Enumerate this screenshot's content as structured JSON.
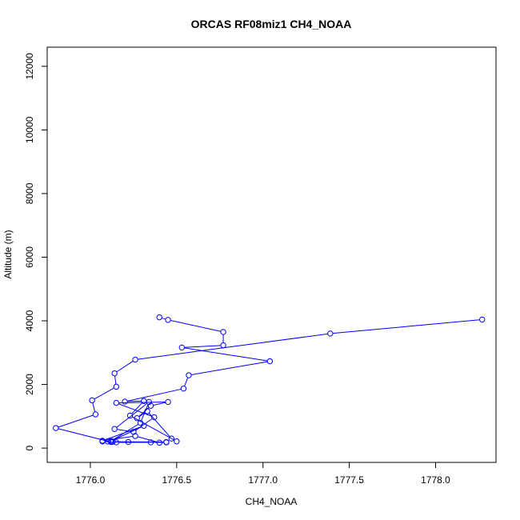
{
  "chart_data": {
    "type": "line",
    "title": "ORCAS RF08miz1 CH4_NOAA",
    "xlabel": "CH4_NOAA",
    "ylabel": "Altitude (m)",
    "xlim": [
      1775.75,
      1778.35
    ],
    "ylim": [
      -450,
      12600
    ],
    "xticks": [
      "1776.0",
      "1776.5",
      "1777.0",
      "1777.5",
      "1778.0"
    ],
    "yticks": [
      "0",
      "2000",
      "4000",
      "6000",
      "8000",
      "10000",
      "12000"
    ],
    "grid": false,
    "series": [
      {
        "color": "#0000ff",
        "marker": "open-circle",
        "x": [
          1776.4,
          1776.45,
          1776.77,
          1776.77,
          1776.53,
          1777.04,
          1776.57,
          1776.54,
          1776.2,
          1776.31,
          1776.23,
          1776.5,
          1776.47,
          1776.33,
          1776.27,
          1776.35,
          1776.45,
          1776.15,
          1776.37,
          1776.25,
          1776.14,
          1776.34,
          1776.29,
          1776.12,
          1776.31,
          1776.07,
          1776.26,
          1776.4,
          1776.44,
          1776.13,
          1776.1,
          1776.07,
          1776.15,
          1776.35,
          1776.44,
          1776.22,
          1776.12,
          1775.8,
          1776.03,
          1776.01,
          1776.15,
          1776.14,
          1776.26,
          1777.39,
          1778.27
        ],
        "y": [
          4110,
          4030,
          3650,
          3230,
          3160,
          2730,
          2290,
          1870,
          1460,
          1480,
          1020,
          210,
          300,
          1160,
          940,
          1330,
          1450,
          1420,
          970,
          510,
          600,
          1450,
          790,
          220,
          700,
          230,
          380,
          170,
          190,
          200,
          210,
          210,
          180,
          180,
          180,
          190,
          190,
          630,
          1060,
          1500,
          1930,
          2350,
          2780,
          3600,
          4040
        ]
      }
    ]
  }
}
